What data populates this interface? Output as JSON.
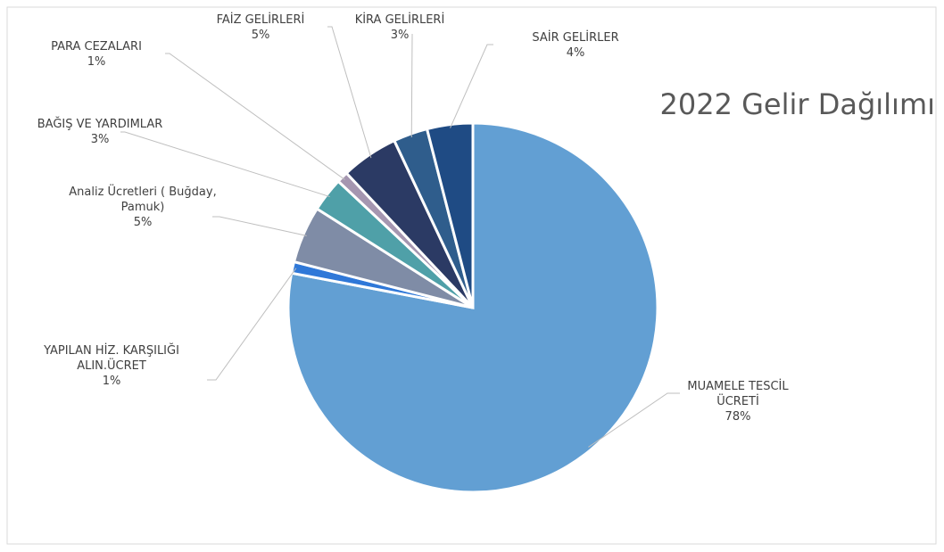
{
  "chart_data": {
    "type": "pie",
    "title": "2022 Gelir Dağılımı",
    "categories": [
      "MUAMELE TESCİL ÜCRETİ",
      "YAPILAN HİZ. KARŞILIĞI ALIN.ÜCRET",
      "Analiz Ücretleri ( Buğday, Pamuk)",
      "BAĞIŞ VE YARDIMLAR",
      "PARA CEZALARI",
      "FAİZ GELİRLERİ",
      "KİRA GELİRLERİ",
      "SAİR GELİRLER"
    ],
    "values": [
      78,
      1,
      5,
      3,
      1,
      5,
      3,
      4
    ],
    "value_labels": [
      "78%",
      "1%",
      "5%",
      "3%",
      "1%",
      "5%",
      "3%",
      "4%"
    ],
    "colors": [
      "#629fd3",
      "#2f78d8",
      "#7f8ca6",
      "#4fa0a8",
      "#a596b0",
      "#2b3a64",
      "#2f5d8c",
      "#1f4b84"
    ]
  }
}
